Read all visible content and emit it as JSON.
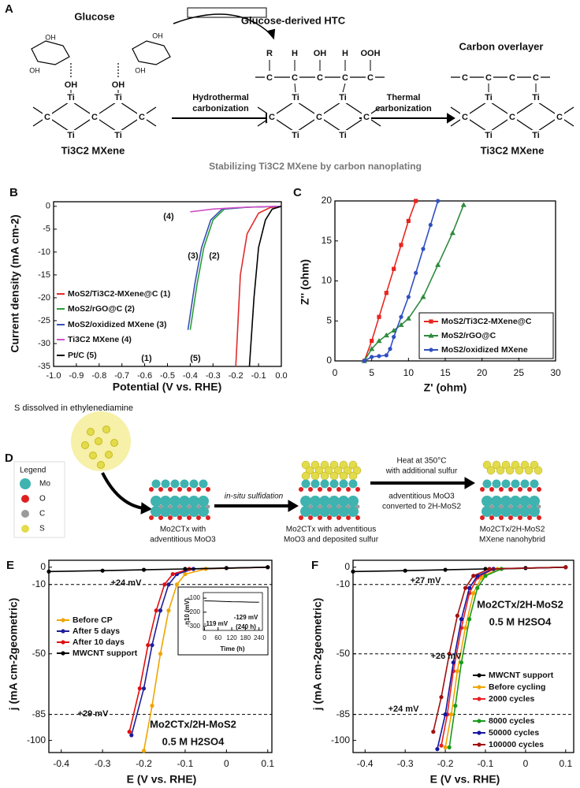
{
  "panel_a": {
    "label": "A",
    "glucose": "Glucose",
    "htc": "Glucose-derived HTC",
    "overlayer": "Carbon overlayer",
    "step1": [
      "Hydrothermal",
      "carbonization"
    ],
    "step2": [
      "Thermal",
      "carbonization"
    ],
    "mxene": "Ti3C2 MXene",
    "caption": "Stabilizing Ti3C2 MXene by carbon nanoplating",
    "atoms": {
      "c": "C",
      "ti": "Ti",
      "oh": "OH",
      "h": "H",
      "r": "R",
      "ooh": "OOH"
    }
  },
  "panel_d": {
    "label": "D",
    "solution": "S dissolved in ethylenediamine",
    "legend_title": "Legend",
    "legend": [
      {
        "name": "Mo",
        "color": "#3fb3b0"
      },
      {
        "name": "O",
        "color": "#e02020"
      },
      {
        "name": "C",
        "color": "#9a9a9a"
      },
      {
        "name": "S",
        "color": "#e3dc4a"
      }
    ],
    "step1": "in-situ sulfidation",
    "step2": [
      "Heat at 350°C",
      "with additional sulfur"
    ],
    "step3": [
      "adventitious MoO3",
      "converted to 2H-MoS2"
    ],
    "captions": [
      [
        "Mo2CTx with",
        "adventitious MoO3"
      ],
      [
        "Mo2CTx with adventitious",
        "MoO3 and deposited sulfur"
      ],
      [
        "Mo2CTx/2H-MoS2",
        "MXene nanohybrid"
      ]
    ]
  },
  "chart_data": [
    {
      "panel": "B",
      "type": "line",
      "markers": false,
      "xlabel": "Potential (V vs. RHE)",
      "ylabel": "Current density (mA cm-2)",
      "xlim": [
        -1,
        0
      ],
      "ylim": [
        -35,
        1
      ],
      "xticks": [
        {
          "value": -1,
          "label": "-1.0"
        },
        -0.9,
        -0.8,
        -0.7,
        -0.6,
        -0.5,
        -0.4,
        -0.3,
        -0.2,
        -0.1,
        {
          "value": 0,
          "label": "0.0"
        }
      ],
      "yticks": [
        0,
        -5,
        -10,
        -15,
        -20,
        -25,
        -30,
        -35
      ],
      "series": [
        {
          "name": "MoS2/Ti3C2-MXene@C (1)",
          "color": "#e02b2b",
          "x": [
            -0.2,
            -0.19,
            -0.18,
            -0.15,
            -0.1,
            -0.05,
            0
          ],
          "values": [
            -35,
            -25,
            -15,
            -6,
            -1.5,
            -0.3,
            0
          ]
        },
        {
          "name": "MoS2/rGO@C (2)",
          "color": "#2a9d3a",
          "x": [
            -0.4,
            -0.37,
            -0.34,
            -0.3,
            -0.25,
            -0.15,
            0
          ],
          "values": [
            -27,
            -17,
            -9,
            -3,
            -0.6,
            -0.2,
            0
          ]
        },
        {
          "name": "MoS2/oxidized MXene (3)",
          "color": "#3a4fb5",
          "x": [
            -0.41,
            -0.38,
            -0.35,
            -0.31,
            -0.26,
            -0.15,
            0
          ],
          "values": [
            -27,
            -17,
            -9,
            -3,
            -0.6,
            -0.2,
            0
          ]
        },
        {
          "name": "Ti3C2 MXene (4)",
          "color": "#d050c8",
          "x": [
            -0.4,
            -0.3,
            -0.2,
            -0.1,
            0
          ],
          "values": [
            -1.2,
            -0.6,
            -0.3,
            -0.1,
            0
          ]
        },
        {
          "name": "Pt/C (5)",
          "color": "#000000",
          "x": [
            -0.14,
            -0.12,
            -0.1,
            -0.07,
            -0.04,
            0
          ],
          "values": [
            -35,
            -20,
            -9,
            -3,
            -0.6,
            0
          ]
        }
      ],
      "annotations": [
        "(1)",
        "(2)",
        "(3)",
        "(4)",
        "(5)"
      ]
    },
    {
      "panel": "C",
      "type": "line",
      "markers": true,
      "xlabel": "Z' (ohm)",
      "ylabel": "Z'' (ohm)",
      "xlim": [
        0,
        30
      ],
      "ylim": [
        0,
        20
      ],
      "xticks": [
        0,
        5,
        10,
        15,
        20,
        25,
        30
      ],
      "yticks": [
        0,
        5,
        10,
        15,
        20
      ],
      "series": [
        {
          "name": "MoS2/Ti3C2-MXene@C",
          "color": "#e8251f",
          "marker": "square",
          "x": [
            4,
            5,
            6,
            7,
            8,
            9,
            10,
            11
          ],
          "values": [
            0,
            2.5,
            5.5,
            8.5,
            11.5,
            14.5,
            17.5,
            20
          ]
        },
        {
          "name": "MoS2/rGO@C",
          "color": "#2e8b3e",
          "marker": "triangle",
          "x": [
            4,
            5,
            6,
            7,
            8,
            9,
            10,
            12,
            14,
            16,
            17.5
          ],
          "values": [
            0,
            1.5,
            2.5,
            3.2,
            3.8,
            4.5,
            5.3,
            8,
            12,
            16,
            19.5
          ]
        },
        {
          "name": "MoS2/oxidized MXene",
          "color": "#3050c0",
          "marker": "circle",
          "x": [
            4,
            5,
            6,
            7,
            7.5,
            8,
            9,
            10,
            11,
            12,
            13,
            14
          ],
          "values": [
            0,
            0.5,
            0.6,
            0.7,
            1.5,
            3,
            5.5,
            8,
            11,
            14,
            17,
            20
          ]
        }
      ]
    },
    {
      "panel": "E",
      "type": "line",
      "markers": true,
      "xlabel": "E (V vs. RHE)",
      "ylabel": "j (mA cm-2geometric)",
      "xlim": [
        -0.43,
        0.11
      ],
      "ylim": [
        -107,
        4
      ],
      "xticks": [
        -0.4,
        -0.3,
        -0.2,
        -0.1,
        0,
        0.1
      ],
      "yticks": [
        0,
        -10,
        -50,
        -85,
        -100
      ],
      "hlines": [
        -10,
        -85
      ],
      "series": [
        {
          "name": "Before CP",
          "color": "#f0a500",
          "x": [
            -0.2,
            -0.18,
            -0.16,
            -0.14,
            -0.12,
            -0.1,
            -0.05,
            0.1
          ],
          "values": [
            -106,
            -80,
            -50,
            -25,
            -10,
            -4,
            -1,
            0
          ]
        },
        {
          "name": "After 5 days",
          "color": "#1f1f9a",
          "x": [
            -0.23,
            -0.2,
            -0.18,
            -0.16,
            -0.14,
            -0.12,
            -0.08,
            0.1
          ],
          "values": [
            -97,
            -70,
            -45,
            -25,
            -10,
            -4,
            -1,
            0
          ]
        },
        {
          "name": "After 10 days",
          "color": "#e01010",
          "x": [
            -0.235,
            -0.21,
            -0.19,
            -0.17,
            -0.15,
            -0.13,
            -0.09,
            0.1
          ],
          "values": [
            -95,
            -70,
            -45,
            -25,
            -10,
            -4,
            -1,
            0
          ]
        },
        {
          "name": "MWCNT support",
          "color": "#000000",
          "x": [
            -0.43,
            -0.3,
            -0.2,
            -0.1,
            0,
            0.1
          ],
          "values": [
            -2.5,
            -2,
            -1.5,
            -1,
            -0.5,
            0
          ]
        }
      ],
      "annotations": [
        "+24 mV",
        "+29 mV",
        "Mo2CTx/2H-MoS2",
        "0.5 M H2SO4"
      ]
    },
    {
      "type": "line",
      "markers": false,
      "xlabel": "Time (h)",
      "ylabel": "η10 (mV)",
      "xlim": [
        -5,
        255
      ],
      "ylim": [
        -330,
        -60
      ],
      "xticks": [
        0,
        60,
        120,
        180,
        240
      ],
      "yticks": [
        -100,
        -200,
        -300
      ],
      "series": [
        {
          "color": "#000000",
          "x": [
            0,
            40,
            80,
            120,
            160,
            200,
            240
          ],
          "values": [
            -119,
            -121,
            -123,
            -125,
            -126,
            -128,
            -129
          ]
        }
      ],
      "annotations": [
        "-119 mV",
        "-129 mV",
        "(240 h)"
      ]
    },
    {
      "panel": "F",
      "type": "line",
      "markers": true,
      "xlabel": "E (V vs. RHE)",
      "ylabel": "j (mA cm-2geometric)",
      "xlim": [
        -0.43,
        0.12
      ],
      "ylim": [
        -107,
        4
      ],
      "xticks": [
        -0.4,
        -0.3,
        -0.2,
        -0.1,
        0,
        0.1
      ],
      "yticks": [
        0,
        -10,
        -50,
        -85,
        -100
      ],
      "hlines": [
        -10,
        -50,
        -85
      ],
      "series": [
        {
          "name": "MWCNT support",
          "color": "#000000",
          "x": [
            -0.43,
            -0.3,
            -0.2,
            -0.1,
            0,
            0.1
          ],
          "values": [
            -2.5,
            -2,
            -1.5,
            -1,
            -0.5,
            0
          ]
        },
        {
          "name": "Before cycling",
          "color": "#f0a500",
          "x": [
            -0.2,
            -0.185,
            -0.17,
            -0.15,
            -0.13,
            -0.11,
            -0.07,
            0.1
          ],
          "values": [
            -104,
            -85,
            -60,
            -35,
            -15,
            -6,
            -1,
            0
          ]
        },
        {
          "name": "2000 cycles",
          "color": "#e82020",
          "x": [
            -0.21,
            -0.195,
            -0.18,
            -0.16,
            -0.14,
            -0.12,
            -0.08,
            0.1
          ],
          "values": [
            -103,
            -85,
            -60,
            -35,
            -15,
            -6,
            -1,
            0
          ]
        },
        {
          "name": "8000 cycles",
          "color": "#1a9a1a",
          "x": [
            -0.19,
            -0.175,
            -0.16,
            -0.14,
            -0.12,
            -0.1,
            -0.06,
            0.1
          ],
          "values": [
            -104,
            -80,
            -55,
            -30,
            -12,
            -5,
            -1,
            0
          ]
        },
        {
          "name": "50000 cycles",
          "color": "#1515a0",
          "x": [
            -0.22,
            -0.2,
            -0.18,
            -0.16,
            -0.14,
            -0.12,
            -0.08,
            0.1
          ],
          "values": [
            -105,
            -85,
            -55,
            -30,
            -12,
            -5,
            -1,
            0
          ]
        },
        {
          "name": "100000 cycles",
          "color": "#a01010",
          "x": [
            -0.23,
            -0.21,
            -0.19,
            -0.17,
            -0.15,
            -0.13,
            -0.09,
            0.1
          ],
          "values": [
            -95,
            -75,
            -50,
            -28,
            -12,
            -5,
            -1,
            0
          ]
        }
      ],
      "annotations": [
        "Mo2CTx/2H-MoS2",
        "0.5 M H2SO4",
        "+27 mV",
        "+26 mV",
        "+24 mV"
      ]
    }
  ]
}
